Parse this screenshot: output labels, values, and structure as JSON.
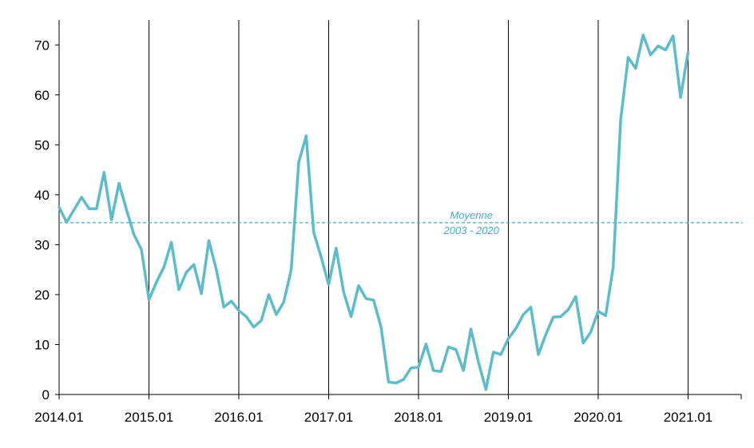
{
  "chart_data": {
    "type": "line",
    "title": "",
    "xlabel": "",
    "ylabel": "",
    "x_ticks": [
      "2014.01",
      "2015.01",
      "2016.01",
      "2017.01",
      "2018.01",
      "2019.01",
      "2020.01",
      "2021.01"
    ],
    "y_ticks": [
      0,
      10,
      20,
      30,
      40,
      50,
      60,
      70
    ],
    "ylim": [
      0,
      75
    ],
    "xlim": [
      "2014.01",
      "2021.08"
    ],
    "grid": "vertical lines at each year",
    "legend": "none",
    "colors": {
      "series": "#5bbdcc",
      "reference": "#3fb0c4",
      "axis": "#000000"
    },
    "reference_line": {
      "value": 34.4,
      "label_line1": "Moyenne",
      "label_line2": "2003 - 2020"
    },
    "series": [
      {
        "color": "#5bbdcc",
        "points": [
          [
            "2014.01",
            37.5
          ],
          [
            "2014.02",
            34.5
          ],
          [
            "2014.03",
            37.0
          ],
          [
            "2014.04",
            39.5
          ],
          [
            "2014.05",
            37.2
          ],
          [
            "2014.06",
            37.2
          ],
          [
            "2014.07",
            44.5
          ],
          [
            "2014.08",
            35.0
          ],
          [
            "2014.09",
            42.3
          ],
          [
            "2014.10",
            37.0
          ],
          [
            "2014.11",
            32.0
          ],
          [
            "2014.12",
            29.0
          ],
          [
            "2015.01",
            19.0
          ],
          [
            "2015.02",
            22.5
          ],
          [
            "2015.03",
            25.5
          ],
          [
            "2015.04",
            30.5
          ],
          [
            "2015.05",
            21.0
          ],
          [
            "2015.06",
            24.5
          ],
          [
            "2015.07",
            26.0
          ],
          [
            "2015.08",
            20.2
          ],
          [
            "2015.09",
            30.8
          ],
          [
            "2015.10",
            25.0
          ],
          [
            "2015.11",
            17.5
          ],
          [
            "2015.12",
            18.7
          ],
          [
            "2016.01",
            16.8
          ],
          [
            "2016.02",
            15.6
          ],
          [
            "2016.03",
            13.5
          ],
          [
            "2016.04",
            14.8
          ],
          [
            "2016.05",
            20.0
          ],
          [
            "2016.06",
            16.0
          ],
          [
            "2016.07",
            18.5
          ],
          [
            "2016.08",
            25.0
          ],
          [
            "2016.09",
            46.5
          ],
          [
            "2016.10",
            51.8
          ],
          [
            "2016.11",
            32.5
          ],
          [
            "2016.12",
            27.5
          ],
          [
            "2017.01",
            22.0
          ],
          [
            "2017.02",
            29.3
          ],
          [
            "2017.03",
            20.5
          ],
          [
            "2017.04",
            15.6
          ],
          [
            "2017.05",
            21.8
          ],
          [
            "2017.06",
            19.2
          ],
          [
            "2017.07",
            18.9
          ],
          [
            "2017.08",
            13.5
          ],
          [
            "2017.09",
            2.5
          ],
          [
            "2017.10",
            2.3
          ],
          [
            "2017.11",
            3.0
          ],
          [
            "2017.12",
            5.3
          ],
          [
            "2018.01",
            5.5
          ],
          [
            "2018.02",
            10.1
          ],
          [
            "2018.03",
            4.8
          ],
          [
            "2018.04",
            4.6
          ],
          [
            "2018.05",
            9.5
          ],
          [
            "2018.06",
            9.0
          ],
          [
            "2018.07",
            4.8
          ],
          [
            "2018.08",
            13.1
          ],
          [
            "2018.09",
            6.5
          ],
          [
            "2018.10",
            1.0
          ],
          [
            "2018.11",
            8.5
          ],
          [
            "2018.12",
            8.0
          ],
          [
            "2019.01",
            11.2
          ],
          [
            "2019.02",
            13.2
          ],
          [
            "2019.03",
            16.0
          ],
          [
            "2019.04",
            17.5
          ],
          [
            "2019.05",
            8.0
          ],
          [
            "2019.06",
            12.0
          ],
          [
            "2019.07",
            15.5
          ],
          [
            "2019.08",
            15.6
          ],
          [
            "2019.09",
            17.0
          ],
          [
            "2019.10",
            19.6
          ],
          [
            "2019.11",
            10.3
          ],
          [
            "2019.12",
            12.5
          ],
          [
            "2020.01",
            16.7
          ],
          [
            "2020.02",
            15.8
          ],
          [
            "2020.03",
            25.5
          ],
          [
            "2020.04",
            55.0
          ],
          [
            "2020.05",
            67.5
          ],
          [
            "2020.06",
            65.3
          ],
          [
            "2020.07",
            72.0
          ],
          [
            "2020.08",
            68.0
          ],
          [
            "2020.09",
            69.8
          ],
          [
            "2020.10",
            69.0
          ],
          [
            "2020.11",
            71.8
          ],
          [
            "2020.12",
            59.5
          ],
          [
            "2021.01",
            68.5
          ]
        ]
      }
    ]
  }
}
